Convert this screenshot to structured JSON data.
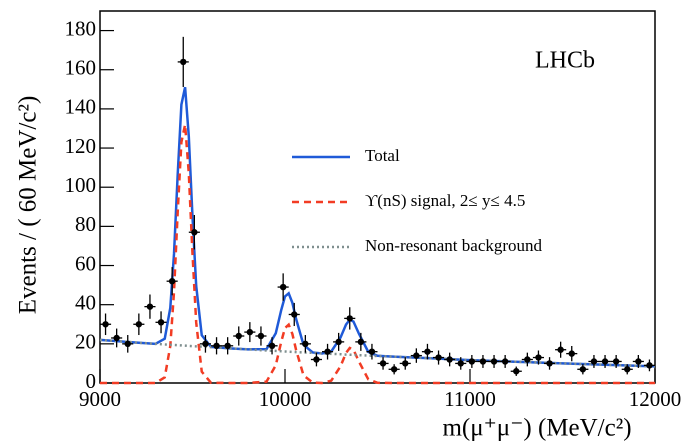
{
  "chart_data": {
    "type": "errorbar",
    "x_label": "m(μ⁺μ⁻) (MeV/c²)",
    "y_label": "Events / ( 60 MeV/c²)",
    "annotation": "LHCb",
    "xlim": [
      9000,
      12000
    ],
    "ylim": [
      0,
      190
    ],
    "xticks": [
      9000,
      10000,
      11000,
      12000
    ],
    "yticks": [
      0,
      20,
      40,
      60,
      80,
      100,
      120,
      140,
      160,
      180
    ],
    "legend_position": "center",
    "data": {
      "color": "#000000",
      "x": [
        9030,
        9090,
        9150,
        9210,
        9270,
        9330,
        9390,
        9450,
        9510,
        9570,
        9630,
        9690,
        9750,
        9810,
        9870,
        9930,
        9990,
        10050,
        10110,
        10170,
        10230,
        10290,
        10350,
        10410,
        10470,
        10530,
        10590,
        10650,
        10710,
        10770,
        10830,
        10890,
        10950,
        11010,
        11070,
        11130,
        11190,
        11250,
        11310,
        11370,
        11430,
        11490,
        11550,
        11610,
        11670,
        11730,
        11790,
        11850,
        11910,
        11970
      ],
      "values": [
        30,
        23,
        20,
        30,
        39,
        31,
        52,
        164,
        77,
        20,
        19,
        19,
        24,
        26,
        24,
        19,
        49,
        35,
        20,
        12,
        16,
        21,
        33,
        21,
        16,
        10,
        7,
        10,
        14,
        16,
        13,
        12,
        10,
        11,
        11,
        11,
        11,
        6,
        12,
        13,
        10,
        17,
        15,
        7,
        11,
        11,
        11,
        7,
        11,
        9
      ],
      "errors": [
        5.5,
        4.8,
        4.5,
        5.5,
        6.2,
        5.6,
        7.2,
        12.8,
        8.8,
        4.5,
        4.4,
        4.4,
        4.9,
        5.1,
        4.9,
        4.4,
        7,
        5.9,
        4.5,
        3.5,
        4,
        4.6,
        5.7,
        4.6,
        4,
        3.2,
        2.6,
        3.2,
        3.7,
        4,
        3.6,
        3.5,
        3.2,
        3.3,
        3.3,
        3.3,
        3.3,
        2.4,
        3.5,
        3.6,
        3.2,
        4.1,
        3.9,
        2.6,
        3.3,
        3.3,
        3.3,
        2.6,
        3.3,
        3
      ]
    },
    "curve_x": [
      9000,
      9100,
      9200,
      9300,
      9350,
      9380,
      9400,
      9420,
      9440,
      9460,
      9480,
      9500,
      9520,
      9550,
      9600,
      9700,
      9800,
      9900,
      9950,
      9980,
      10000,
      10020,
      10040,
      10060,
      10100,
      10150,
      10200,
      10250,
      10300,
      10330,
      10350,
      10370,
      10400,
      10450,
      10500,
      10600,
      10800,
      11000,
      11500,
      12000
    ],
    "series": [
      {
        "name": "Total",
        "color": "#1f5ad8",
        "dash": "solid",
        "values": [
          22,
          21.3,
          20.6,
          20,
          22.6,
          38.4,
          65.9,
          106.6,
          142.2,
          151.1,
          125.9,
          84.8,
          49.6,
          24.4,
          18.4,
          17.7,
          17.2,
          17.3,
          25.4,
          37.4,
          44.2,
          45.8,
          40.9,
          32.7,
          19.5,
          15.6,
          15.1,
          16.1,
          23.2,
          29.9,
          32.3,
          31.4,
          25.1,
          15.9,
          13.9,
          13.4,
          12.6,
          11.7,
          10,
          8.5
        ]
      },
      {
        "name": "ϒ(nS) signal, 2≤ y≤ 4.5",
        "color": "#f23c24",
        "dash": "dashed",
        "values": [
          0,
          0,
          0,
          0,
          2.9,
          18.9,
          46.5,
          87.3,
          123,
          132,
          107,
          66,
          30.9,
          5.8,
          0.1,
          0,
          0,
          0.7,
          9,
          21.2,
          28.1,
          29.8,
          25,
          16.9,
          3.9,
          0.2,
          0,
          1.2,
          8.5,
          15.4,
          17.9,
          17,
          10.9,
          1.9,
          0.1,
          0,
          0,
          0,
          0,
          0
        ]
      },
      {
        "name": "Non-resonant background",
        "color": "#7f8f8f",
        "dash": "dotted",
        "values": [
          22,
          21.3,
          20.6,
          20,
          19.7,
          19.5,
          19.4,
          19.3,
          19.2,
          19.1,
          18.9,
          18.8,
          18.7,
          18.6,
          18.3,
          17.7,
          17.2,
          16.6,
          16.4,
          16.2,
          16.1,
          16,
          15.9,
          15.8,
          15.6,
          15.4,
          15.1,
          14.9,
          14.7,
          14.5,
          14.4,
          14.4,
          14.2,
          14,
          13.8,
          13.4,
          12.6,
          11.7,
          10,
          8.5
        ]
      }
    ]
  }
}
